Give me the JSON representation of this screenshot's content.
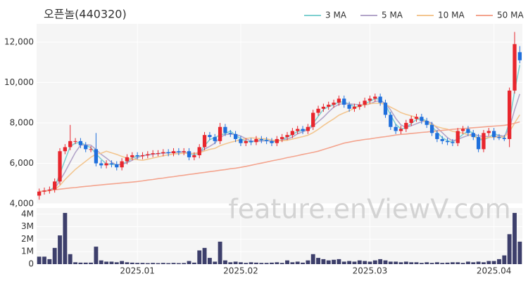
{
  "chart_data": {
    "type": "candlestick",
    "title": "오픈놀(440320)",
    "watermark": "feature.enViewV.com",
    "up_color": "#e8262d",
    "down_color": "#1f6fdc",
    "grid": true,
    "legend": "top-right",
    "categories": [
      null,
      null,
      null,
      null,
      null,
      null,
      null,
      null,
      null,
      null,
      null,
      null,
      null,
      null,
      null,
      null,
      null,
      null,
      null,
      "2025.01",
      null,
      null,
      null,
      null,
      null,
      null,
      null,
      null,
      null,
      null,
      null,
      null,
      null,
      null,
      null,
      null,
      null,
      null,
      null,
      "2025.02",
      null,
      null,
      null,
      null,
      null,
      null,
      null,
      null,
      null,
      null,
      null,
      null,
      null,
      null,
      null,
      null,
      null,
      null,
      null,
      null,
      null,
      null,
      null,
      null,
      "2025.03",
      null,
      null,
      null,
      null,
      null,
      null,
      null,
      null,
      null,
      null,
      null,
      null,
      null,
      null,
      null,
      null,
      null,
      null,
      null,
      null,
      null,
      null,
      null,
      "2025.04",
      null,
      null,
      null,
      null,
      null
    ],
    "open": [
      4400,
      4600,
      4650,
      4700,
      5100,
      6600,
      6800,
      7100,
      7100,
      6900,
      6700,
      6700,
      6000,
      5900,
      6000,
      5950,
      5800,
      6100,
      6300,
      6400,
      6350,
      6400,
      6450,
      6500,
      6500,
      6550,
      6500,
      6600,
      6550,
      6600,
      6300,
      6400,
      6800,
      7400,
      7300,
      7100,
      7800,
      7500,
      7450,
      7200,
      7000,
      7100,
      7050,
      7200,
      7150,
      7100,
      7000,
      7200,
      7300,
      7400,
      7600,
      7700,
      7600,
      7800,
      8500,
      8700,
      8800,
      8900,
      9000,
      9200,
      8900,
      8700,
      8800,
      8900,
      9100,
      9200,
      9300,
      9000,
      8400,
      7800,
      7600,
      7700,
      8000,
      8200,
      8300,
      8100,
      7900,
      7500,
      7200,
      7100,
      7050,
      7000,
      7600,
      7700,
      7500,
      7300,
      6700,
      7500,
      7600,
      7300,
      7250,
      7200,
      9600,
      11500
    ],
    "high": [
      4750,
      4800,
      4850,
      5250,
      6750,
      6950,
      7900,
      7250,
      7250,
      7050,
      6850,
      7500,
      6150,
      6150,
      6150,
      6100,
      6250,
      6450,
      6550,
      6550,
      6550,
      6600,
      6650,
      6650,
      6700,
      6700,
      6750,
      6750,
      6750,
      6750,
      6550,
      6950,
      7550,
      7550,
      7450,
      8000,
      7950,
      7650,
      7600,
      7350,
      7250,
      7250,
      7350,
      7350,
      7300,
      7250,
      7350,
      7450,
      7550,
      7750,
      7850,
      7850,
      7950,
      8650,
      8850,
      8950,
      9050,
      9150,
      9350,
      9350,
      9050,
      8950,
      9050,
      9250,
      9350,
      9450,
      9450,
      9150,
      8550,
      7950,
      7850,
      8150,
      8350,
      8450,
      8450,
      8250,
      8050,
      7650,
      7350,
      7250,
      7200,
      7750,
      7850,
      7850,
      7650,
      7450,
      7650,
      7750,
      7750,
      7450,
      7400,
      9750,
      12500,
      11800
    ],
    "low": [
      4200,
      4450,
      4500,
      4550,
      4950,
      6450,
      6650,
      6950,
      6750,
      6550,
      6550,
      5850,
      5750,
      5750,
      5800,
      5650,
      5650,
      5950,
      6150,
      6200,
      6200,
      6250,
      6300,
      6350,
      6350,
      6350,
      6350,
      6400,
      6400,
      6150,
      6150,
      6250,
      6650,
      7150,
      6950,
      6950,
      7350,
      7300,
      7050,
      6850,
      6850,
      6900,
      6900,
      7000,
      6950,
      6850,
      6850,
      7050,
      7150,
      7250,
      7450,
      7450,
      7450,
      7650,
      8350,
      8550,
      8650,
      8750,
      8850,
      8750,
      8550,
      8550,
      8650,
      8750,
      8950,
      9050,
      8850,
      8250,
      7650,
      7450,
      7450,
      7550,
      7850,
      8050,
      7950,
      7750,
      7350,
      7050,
      6950,
      6900,
      6850,
      6850,
      7450,
      7350,
      7150,
      6550,
      6550,
      7350,
      7150,
      7150,
      7100,
      6800,
      9450,
      10950
    ],
    "close": [
      4600,
      4650,
      4700,
      5100,
      6600,
      6800,
      7100,
      7100,
      6900,
      6700,
      6700,
      6000,
      5900,
      6000,
      5950,
      5800,
      6100,
      6300,
      6400,
      6350,
      6400,
      6450,
      6500,
      6500,
      6550,
      6500,
      6600,
      6550,
      6600,
      6300,
      6400,
      6800,
      7400,
      7300,
      7100,
      7800,
      7500,
      7450,
      7200,
      7000,
      7100,
      7050,
      7200,
      7150,
      7100,
      7000,
      7200,
      7300,
      7400,
      7600,
      7700,
      7600,
      7800,
      8500,
      8700,
      8800,
      8900,
      9000,
      9200,
      8900,
      8700,
      8800,
      8900,
      9100,
      9200,
      9300,
      9000,
      8400,
      7800,
      7600,
      7700,
      8000,
      8200,
      8300,
      8100,
      7900,
      7500,
      7200,
      7100,
      7050,
      7000,
      7600,
      7700,
      7500,
      7300,
      6700,
      7500,
      7600,
      7300,
      7250,
      7200,
      9600,
      11900,
      11100
    ],
    "ylim": [
      4000,
      12900
    ],
    "yticks": [
      {
        "value": 4000,
        "label": "4,000"
      },
      {
        "value": 6000,
        "label": "6,000"
      },
      {
        "value": 8000,
        "label": "8,000"
      },
      {
        "value": 10000,
        "label": "10,000"
      },
      {
        "value": 12000,
        "label": "12,000"
      }
    ],
    "series": [
      {
        "name": "3 MA",
        "color": "#7fd0d0",
        "values": [
          4600,
          4630,
          4670,
          4820,
          5470,
          6170,
          6830,
          7000,
          7030,
          6900,
          6770,
          6470,
          6200,
          5970,
          5950,
          5920,
          5970,
          6070,
          6270,
          6350,
          6380,
          6420,
          6450,
          6480,
          6520,
          6520,
          6550,
          6550,
          6580,
          6480,
          6430,
          6500,
          6870,
          7170,
          7270,
          7400,
          7470,
          7600,
          7380,
          7220,
          7100,
          7050,
          7120,
          7130,
          7150,
          7080,
          7070,
          7170,
          7300,
          7430,
          7570,
          7630,
          7700,
          7970,
          8330,
          8670,
          8800,
          8900,
          9030,
          9030,
          8930,
          8800,
          8800,
          8930,
          9070,
          9200,
          9170,
          8900,
          8400,
          7930,
          7700,
          7770,
          7970,
          8170,
          8200,
          8100,
          7830,
          7530,
          7270,
          7120,
          7050,
          7220,
          7430,
          7600,
          7500,
          7170,
          7170,
          7270,
          7470,
          7380,
          7250,
          8020,
          9570,
          10870
        ]
      },
      {
        "name": "5 MA",
        "color": "#b3a5c9",
        "values": [
          4600,
          4630,
          4650,
          4750,
          5140,
          5580,
          6060,
          6540,
          6900,
          6920,
          6900,
          6680,
          6440,
          6260,
          6050,
          5920,
          5950,
          6030,
          6150,
          6280,
          6380,
          6400,
          6450,
          6480,
          6500,
          6520,
          6550,
          6550,
          6570,
          6500,
          6490,
          6540,
          6700,
          6840,
          7000,
          7280,
          7420,
          7450,
          7420,
          7350,
          7220,
          7100,
          7100,
          7100,
          7120,
          7100,
          7130,
          7150,
          7200,
          7300,
          7460,
          7560,
          7660,
          7840,
          8060,
          8280,
          8540,
          8780,
          8920,
          8960,
          8940,
          8920,
          8900,
          8880,
          8940,
          9060,
          9100,
          8960,
          8640,
          8220,
          7900,
          7780,
          7860,
          7960,
          8060,
          8100,
          7980,
          7750,
          7520,
          7270,
          7110,
          7180,
          7290,
          7380,
          7460,
          7360,
          7340,
          7320,
          7280,
          7390,
          7330,
          7730,
          8650,
          9430
        ]
      },
      {
        "name": "10 MA",
        "color": "#f3c690",
        "values": [
          4600,
          4620,
          4650,
          4700,
          4900,
          5200,
          5450,
          5700,
          5900,
          6100,
          6300,
          6450,
          6500,
          6600,
          6520,
          6440,
          6340,
          6260,
          6210,
          6180,
          6150,
          6200,
          6260,
          6320,
          6370,
          6420,
          6460,
          6480,
          6500,
          6490,
          6490,
          6520,
          6610,
          6690,
          6740,
          6870,
          6960,
          7040,
          7100,
          7160,
          7230,
          7260,
          7240,
          7220,
          7210,
          7150,
          7120,
          7120,
          7140,
          7200,
          7260,
          7320,
          7390,
          7520,
          7680,
          7870,
          8040,
          8200,
          8380,
          8500,
          8600,
          8720,
          8840,
          8900,
          8950,
          8970,
          8970,
          8920,
          8780,
          8650,
          8510,
          8420,
          8350,
          8270,
          8160,
          8020,
          7930,
          7810,
          7740,
          7690,
          7580,
          7540,
          7490,
          7410,
          7330,
          7230,
          7230,
          7280,
          7300,
          7300,
          7300,
          7550,
          7990,
          8400
        ]
      },
      {
        "name": "50 MA",
        "color": "#f4a48e",
        "values": [
          4600,
          4630,
          4660,
          4690,
          4720,
          4750,
          4780,
          4800,
          4830,
          4860,
          4880,
          4910,
          4930,
          4960,
          4980,
          5000,
          5030,
          5050,
          5070,
          5100,
          5130,
          5170,
          5200,
          5240,
          5270,
          5310,
          5340,
          5380,
          5410,
          5450,
          5480,
          5520,
          5550,
          5590,
          5620,
          5660,
          5690,
          5730,
          5760,
          5800,
          5850,
          5900,
          5960,
          6010,
          6060,
          6120,
          6170,
          6220,
          6280,
          6330,
          6380,
          6440,
          6490,
          6540,
          6600,
          6680,
          6760,
          6840,
          6920,
          7000,
          7050,
          7100,
          7140,
          7180,
          7210,
          7250,
          7290,
          7320,
          7360,
          7400,
          7430,
          7450,
          7480,
          7500,
          7530,
          7550,
          7580,
          7600,
          7630,
          7650,
          7680,
          7700,
          7720,
          7740,
          7760,
          7780,
          7800,
          7820,
          7840,
          7860,
          7880,
          7920,
          7980,
          8050
        ]
      }
    ],
    "volume": {
      "color": "#3d3f6b",
      "ylim": [
        0,
        4500000
      ],
      "yticks": [
        0,
        {
          "value": 1000000,
          "label": "1M"
        },
        {
          "value": 2000000,
          "label": "2M"
        },
        {
          "value": 3000000,
          "label": "3M"
        },
        {
          "value": 4000000,
          "label": "4M"
        }
      ],
      "values": [
        600000,
        600000,
        400000,
        1300000,
        2300000,
        4100000,
        800000,
        150000,
        120000,
        120000,
        120000,
        1400000,
        300000,
        200000,
        200000,
        150000,
        250000,
        150000,
        120000,
        100000,
        100000,
        80000,
        100000,
        80000,
        100000,
        80000,
        100000,
        80000,
        90000,
        250000,
        120000,
        1100000,
        1300000,
        500000,
        200000,
        1800000,
        300000,
        150000,
        200000,
        150000,
        100000,
        150000,
        120000,
        100000,
        100000,
        120000,
        150000,
        100000,
        300000,
        150000,
        200000,
        120000,
        300000,
        800000,
        500000,
        400000,
        300000,
        350000,
        400000,
        200000,
        250000,
        200000,
        300000,
        250000,
        200000,
        300000,
        400000,
        300000,
        200000,
        200000,
        150000,
        200000,
        150000,
        150000,
        100000,
        150000,
        100000,
        150000,
        100000,
        120000,
        150000,
        150000,
        100000,
        200000,
        150000,
        200000,
        150000,
        250000,
        250000,
        400000,
        700000,
        2400000,
        4100000,
        1800000
      ]
    }
  }
}
